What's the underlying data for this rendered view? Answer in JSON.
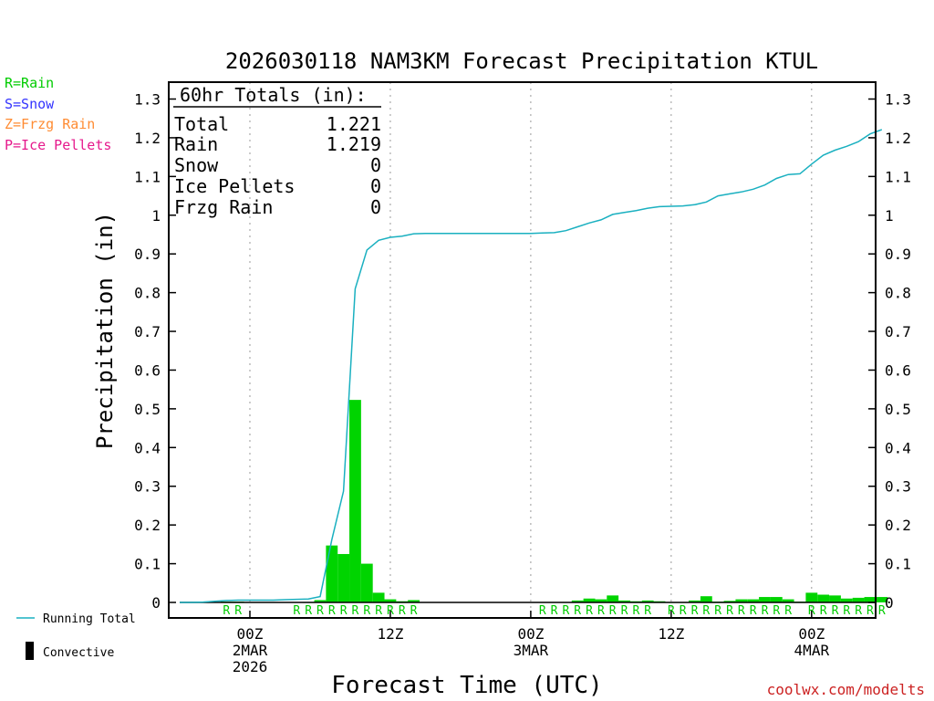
{
  "chart_data": {
    "type": "bar",
    "title": "2026030118 NAM3KM Forecast Precipitation KTUL",
    "xlabel": "Forecast Time (UTC)",
    "ylabel": "Precipitation (in)",
    "ylim": [
      0,
      1.35
    ],
    "y_ticks": [
      "0",
      "0.1",
      "0.2",
      "0.3",
      "0.4",
      "0.5",
      "0.6",
      "0.7",
      "0.8",
      "0.9",
      "1",
      "1.1",
      "1.2",
      "1.3"
    ],
    "x_unit": "forecast hour",
    "xlim": [
      -1.5,
      61
    ],
    "x_ticks": [
      {
        "hour": 6,
        "lines": [
          "00Z",
          "2MAR",
          "2026"
        ]
      },
      {
        "hour": 18,
        "lines": [
          "12Z"
        ]
      },
      {
        "hour": 30,
        "lines": [
          "00Z",
          "3MAR"
        ]
      },
      {
        "hour": 42,
        "lines": [
          "12Z"
        ]
      },
      {
        "hour": 54,
        "lines": [
          "00Z",
          "4MAR"
        ]
      }
    ],
    "grid": "vertical dotted at tick hours",
    "legend_types": [
      {
        "code": "R=Rain",
        "color": "#00cc00"
      },
      {
        "code": "S=Snow",
        "color": "#3333ff"
      },
      {
        "code": "Z=Frzg Rain",
        "color": "#ff8c33"
      },
      {
        "code": "P=Ice Pellets",
        "color": "#e6198c"
      }
    ],
    "legend_series": [
      {
        "label": "Running Total",
        "color": "#1ab0c0"
      },
      {
        "label": "Convective",
        "color": "#000000"
      }
    ],
    "totals": {
      "header": "60hr Totals (in):",
      "rows": [
        {
          "label": "Total",
          "value": "1.221"
        },
        {
          "label": "Rain",
          "value": "1.219"
        },
        {
          "label": "Snow",
          "value": "0"
        },
        {
          "label": "Ice Pellets",
          "value": "0"
        },
        {
          "label": "Frzg Rain",
          "value": "0"
        }
      ]
    },
    "series": [
      {
        "name": "Hourly Precipitation (Rain)",
        "type": "bar",
        "color": "#00d400",
        "hours": [
          0,
          1,
          2,
          3,
          4,
          5,
          6,
          7,
          8,
          9,
          10,
          11,
          12,
          13,
          14,
          15,
          16,
          17,
          18,
          19,
          20,
          21,
          22,
          23,
          24,
          25,
          26,
          27,
          28,
          29,
          30,
          31,
          32,
          33,
          34,
          35,
          36,
          37,
          38,
          39,
          40,
          41,
          42,
          43,
          44,
          45,
          46,
          47,
          48,
          49,
          50,
          51,
          52,
          53,
          54,
          55,
          56,
          57,
          58,
          59,
          60
        ],
        "values": [
          0,
          0,
          0,
          0,
          0.002,
          0.002,
          0,
          0,
          0,
          0,
          0,
          0.001,
          0.006,
          0.147,
          0.125,
          0.523,
          0.1,
          0.025,
          0.008,
          0.003,
          0.006,
          0,
          0,
          0,
          0,
          0,
          0,
          0,
          0,
          0,
          0,
          0,
          0,
          0,
          0.005,
          0.01,
          0.008,
          0.018,
          0.005,
          0.003,
          0.005,
          0.003,
          0.001,
          0.001,
          0.005,
          0.016,
          0.002,
          0.004,
          0.008,
          0.008,
          0.014,
          0.014,
          0.008,
          0.002,
          0.025,
          0.02,
          0.018,
          0.01,
          0.012,
          0.014,
          0.014
        ]
      },
      {
        "name": "Running Total",
        "type": "line",
        "color": "#1ab0c0",
        "hours": [
          0,
          1,
          2,
          3,
          4,
          5,
          6,
          7,
          8,
          9,
          10,
          11,
          12,
          13,
          14,
          15,
          16,
          17,
          18,
          19,
          20,
          21,
          22,
          23,
          24,
          25,
          26,
          27,
          28,
          29,
          30,
          31,
          32,
          33,
          34,
          35,
          36,
          37,
          38,
          39,
          40,
          41,
          42,
          43,
          44,
          45,
          46,
          47,
          48,
          49,
          50,
          51,
          52,
          53,
          54,
          55,
          56,
          57,
          58,
          59,
          60
        ],
        "values": [
          0,
          0,
          0.001,
          0.003,
          0.005,
          0.006,
          0.006,
          0.006,
          0.006,
          0.007,
          0.008,
          0.009,
          0.015,
          0.162,
          0.287,
          0.81,
          0.91,
          0.935,
          0.943,
          0.946,
          0.952,
          0.953,
          0.953,
          0.953,
          0.953,
          0.953,
          0.953,
          0.953,
          0.953,
          0.953,
          0.953,
          0.954,
          0.955,
          0.96,
          0.97,
          0.98,
          0.988,
          1.002,
          1.007,
          1.012,
          1.018,
          1.022,
          1.023,
          1.024,
          1.027,
          1.034,
          1.05,
          1.055,
          1.06,
          1.067,
          1.078,
          1.095,
          1.105,
          1.107,
          1.132,
          1.155,
          1.168,
          1.178,
          1.19,
          1.21,
          1.221
        ]
      }
    ],
    "ptype_markers": [
      {
        "hour": 4,
        "code": "R"
      },
      {
        "hour": 5,
        "code": "R"
      },
      {
        "hour": 10,
        "code": "R"
      },
      {
        "hour": 11,
        "code": "R"
      },
      {
        "hour": 12,
        "code": "R"
      },
      {
        "hour": 13,
        "code": "R"
      },
      {
        "hour": 14,
        "code": "R"
      },
      {
        "hour": 15,
        "code": "R"
      },
      {
        "hour": 16,
        "code": "R"
      },
      {
        "hour": 17,
        "code": "R"
      },
      {
        "hour": 18,
        "code": "R"
      },
      {
        "hour": 19,
        "code": "R"
      },
      {
        "hour": 20,
        "code": "R"
      },
      {
        "hour": 31,
        "code": "R"
      },
      {
        "hour": 32,
        "code": "R"
      },
      {
        "hour": 33,
        "code": "R"
      },
      {
        "hour": 34,
        "code": "R"
      },
      {
        "hour": 35,
        "code": "R"
      },
      {
        "hour": 36,
        "code": "R"
      },
      {
        "hour": 37,
        "code": "R"
      },
      {
        "hour": 38,
        "code": "R"
      },
      {
        "hour": 39,
        "code": "R"
      },
      {
        "hour": 40,
        "code": "R"
      },
      {
        "hour": 42,
        "code": "R"
      },
      {
        "hour": 43,
        "code": "R"
      },
      {
        "hour": 44,
        "code": "R"
      },
      {
        "hour": 45,
        "code": "R"
      },
      {
        "hour": 46,
        "code": "R"
      },
      {
        "hour": 47,
        "code": "R"
      },
      {
        "hour": 48,
        "code": "R"
      },
      {
        "hour": 49,
        "code": "R"
      },
      {
        "hour": 50,
        "code": "R"
      },
      {
        "hour": 51,
        "code": "R"
      },
      {
        "hour": 52,
        "code": "R"
      },
      {
        "hour": 54,
        "code": "R"
      },
      {
        "hour": 55,
        "code": "R"
      },
      {
        "hour": 56,
        "code": "R"
      },
      {
        "hour": 57,
        "code": "R"
      },
      {
        "hour": 58,
        "code": "R"
      },
      {
        "hour": 59,
        "code": "R"
      },
      {
        "hour": 60,
        "code": "R"
      }
    ],
    "credit": "coolwx.com/modelts"
  }
}
